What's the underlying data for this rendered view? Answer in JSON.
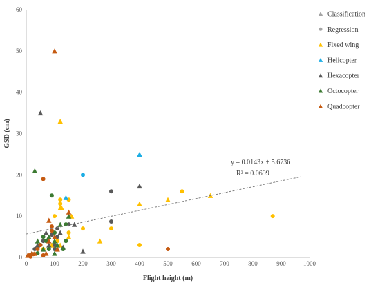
{
  "chart_data": {
    "type": "scatter",
    "xlabel": "Flight height (m)",
    "ylabel": "GSD (cm)",
    "xlim": [
      0,
      1000
    ],
    "ylim": [
      0,
      60
    ],
    "xticks": [
      0,
      100,
      200,
      300,
      400,
      500,
      600,
      700,
      800,
      900,
      1000
    ],
    "yticks": [
      0,
      10,
      20,
      30,
      40,
      50,
      60
    ],
    "grid": false,
    "legend_position": "right",
    "trendline": {
      "slope": 0.0143,
      "intercept": 5.6736,
      "x_range": [
        0,
        1000
      ],
      "equation": "y = 0.0143x + 5.6736",
      "r2": "R² = 0.0699",
      "color": "#7f7f7f",
      "style": "dashed"
    },
    "series": [
      {
        "name": "Classification",
        "marker": "triangle",
        "color": "#a5a5a5",
        "points": []
      },
      {
        "name": "Regression",
        "marker": "circle",
        "color": "#a5a5a5",
        "points": []
      },
      {
        "name": "Fixed wing",
        "marker": "mixed",
        "color": "#ffc000",
        "points": [
          [
            120,
            33
          ],
          [
            120,
            14
          ],
          [
            120,
            12
          ],
          [
            120,
            13
          ],
          [
            125,
            12
          ],
          [
            100,
            10
          ],
          [
            120,
            3
          ],
          [
            150,
            14
          ],
          [
            150,
            5
          ],
          [
            150,
            6
          ],
          [
            160,
            10
          ],
          [
            200,
            7
          ],
          [
            260,
            4
          ],
          [
            300,
            7
          ],
          [
            400,
            13
          ],
          [
            400,
            3
          ],
          [
            500,
            14
          ],
          [
            550,
            16
          ],
          [
            650,
            15
          ],
          [
            870,
            10
          ],
          [
            30,
            1
          ],
          [
            60,
            2
          ],
          [
            90,
            3
          ],
          [
            110,
            4
          ]
        ]
      },
      {
        "name": "Helicopter",
        "marker": "mixed",
        "color": "#1cade4",
        "points": [
          [
            140,
            14.5
          ],
          [
            200,
            20
          ],
          [
            400,
            25
          ]
        ]
      },
      {
        "name": "Hexacopter",
        "marker": "mixed",
        "color": "#595959",
        "points": [
          [
            50,
            35
          ],
          [
            300,
            16
          ],
          [
            400,
            17.3
          ],
          [
            300,
            8.7
          ],
          [
            200,
            1.5
          ],
          [
            150,
            8
          ],
          [
            170,
            8
          ],
          [
            110,
            5
          ],
          [
            120,
            6
          ],
          [
            100,
            3
          ],
          [
            80,
            3
          ],
          [
            60,
            4
          ],
          [
            40,
            3
          ],
          [
            30,
            2
          ],
          [
            20,
            1
          ],
          [
            100,
            2
          ],
          [
            130,
            2.5
          ],
          [
            90,
            5.5
          ],
          [
            70,
            6
          ],
          [
            110,
            7
          ]
        ]
      },
      {
        "name": "Octocopter",
        "marker": "mixed",
        "color": "#3c7a32",
        "points": [
          [
            30,
            21
          ],
          [
            90,
            15
          ],
          [
            150,
            10
          ],
          [
            140,
            8
          ],
          [
            120,
            8
          ],
          [
            100,
            6
          ],
          [
            80,
            5
          ],
          [
            60,
            5
          ],
          [
            40,
            4
          ],
          [
            50,
            3
          ],
          [
            100,
            1
          ],
          [
            80,
            2
          ],
          [
            60,
            2
          ],
          [
            40,
            1
          ],
          [
            20,
            1
          ],
          [
            140,
            4
          ],
          [
            110,
            3
          ],
          [
            70,
            4
          ],
          [
            100,
            4
          ],
          [
            130,
            2
          ]
        ]
      },
      {
        "name": "Quadcopter",
        "marker": "mixed",
        "color": "#c55a11",
        "points": [
          [
            100,
            50
          ],
          [
            60,
            19
          ],
          [
            150,
            11
          ],
          [
            500,
            2
          ],
          [
            80,
            9
          ],
          [
            90,
            7.5
          ],
          [
            100,
            5
          ],
          [
            50,
            3
          ],
          [
            30,
            1
          ],
          [
            10,
            0.5
          ],
          [
            20,
            1
          ],
          [
            60,
            0.5
          ],
          [
            110,
            2
          ],
          [
            90,
            6.5
          ],
          [
            80,
            4
          ],
          [
            40,
            2
          ],
          [
            70,
            1
          ],
          [
            15,
            0.2
          ],
          [
            5,
            0.5
          ],
          [
            25,
            0.8
          ]
        ]
      }
    ]
  }
}
